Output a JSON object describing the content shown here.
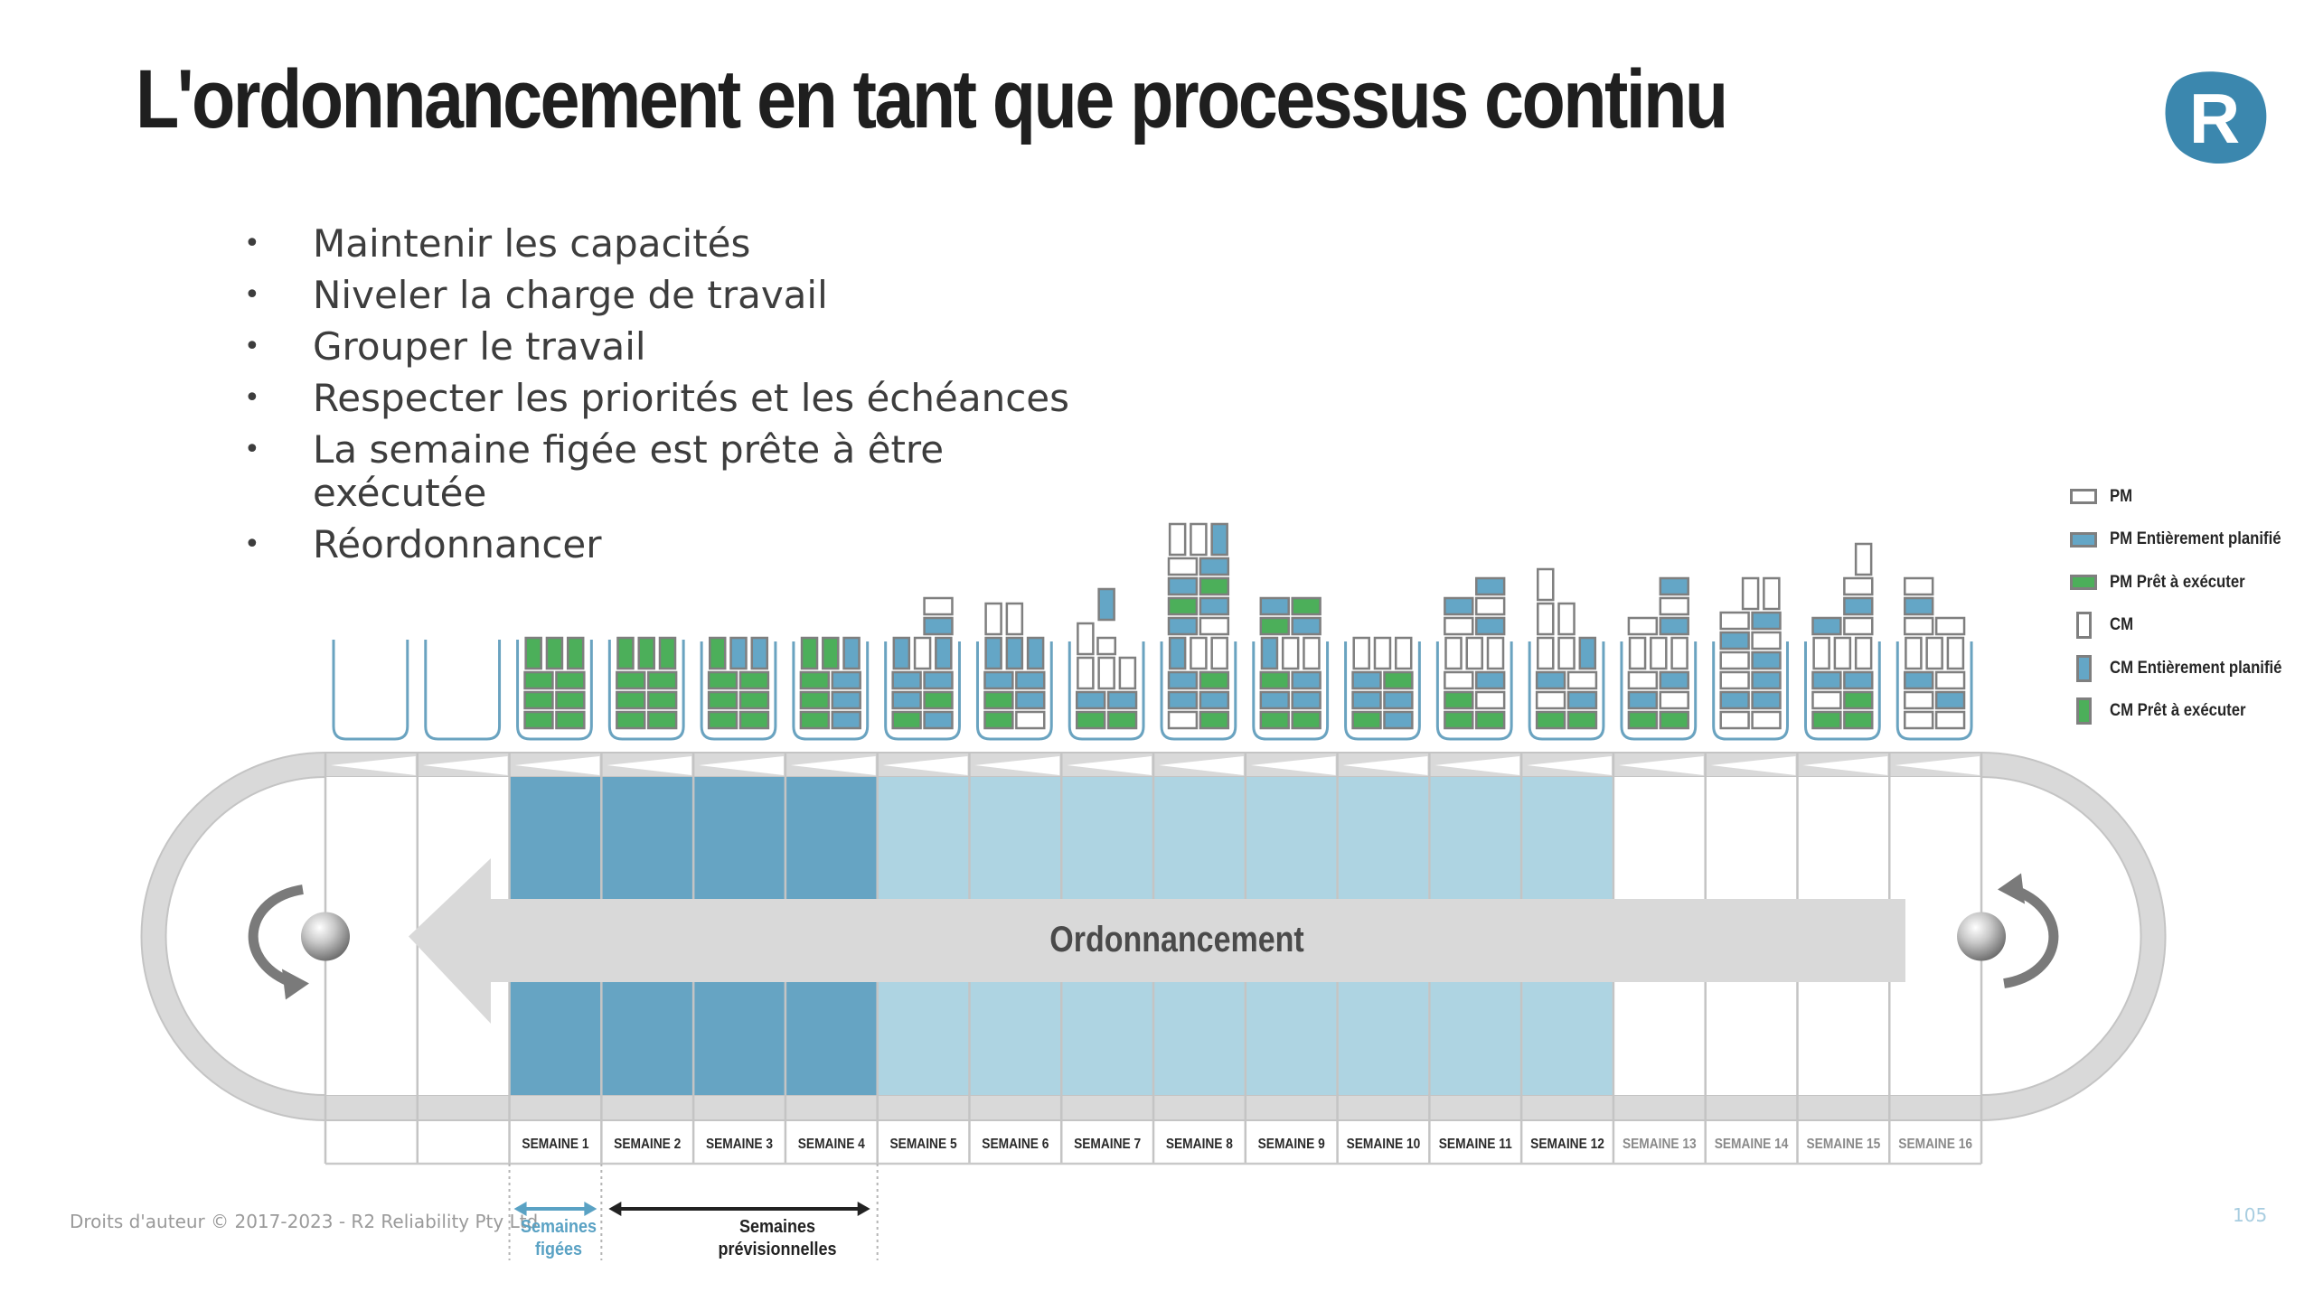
{
  "slide": {
    "title": "L'ordonnancement en tant que processus continu",
    "logo_letter": "R",
    "bullets": [
      "Maintenir les capacités",
      "Niveler la charge de travail",
      "Grouper le travail",
      "Respecter les priorités et les échéances",
      "La semaine figée est prête à être exécutée",
      "Réordonnancer"
    ],
    "bullet_glyph": "•",
    "footer": "Droits d'auteur © 2017-2023 - R2 Reliability Pty Ltd",
    "page_number": "105"
  },
  "legend": [
    {
      "label": "PM",
      "shape": "horizontal",
      "fill": "#ffffff"
    },
    {
      "label": "PM Entièrement planifié",
      "shape": "horizontal",
      "fill": "#64a6c6"
    },
    {
      "label": "PM Prêt à exécuter",
      "shape": "horizontal",
      "fill": "#4caf5a"
    },
    {
      "label": "CM",
      "shape": "vertical",
      "fill": "#ffffff"
    },
    {
      "label": "CM Entièrement planifié",
      "shape": "vertical",
      "fill": "#64a6c6"
    },
    {
      "label": "CM Prêt à exécuter",
      "shape": "vertical",
      "fill": "#4caf5a"
    }
  ],
  "colors": {
    "planned": "#64a6c6",
    "ready": "#4caf5a",
    "empty": "#ffffff",
    "block_border": "#7f7f7f",
    "bin_stroke": "#6aa3c0",
    "frozen_cell": "#66a4c3",
    "forecast_cell": "#aed4e2",
    "belt": "#d9d9d9",
    "belt_edge": "#c4c4c4",
    "logo": "#3b87ae"
  },
  "conveyor": {
    "arrow_label": "Ordonnancement",
    "weeks": [
      {
        "label": "",
        "state": "past"
      },
      {
        "label": "",
        "state": "past"
      },
      {
        "label": "SEMAINE 1",
        "state": "frozen"
      },
      {
        "label": "SEMAINE 2",
        "state": "frozen"
      },
      {
        "label": "SEMAINE 3",
        "state": "frozen"
      },
      {
        "label": "SEMAINE 4",
        "state": "frozen"
      },
      {
        "label": "SEMAINE 5",
        "state": "forecast"
      },
      {
        "label": "SEMAINE 6",
        "state": "forecast"
      },
      {
        "label": "SEMAINE 7",
        "state": "forecast"
      },
      {
        "label": "SEMAINE 8",
        "state": "forecast"
      },
      {
        "label": "SEMAINE 9",
        "state": "forecast"
      },
      {
        "label": "SEMAINE 10",
        "state": "forecast"
      },
      {
        "label": "SEMAINE 11",
        "state": "forecast"
      },
      {
        "label": "SEMAINE 12",
        "state": "forecast"
      },
      {
        "label": "SEMAINE 13",
        "state": "future"
      },
      {
        "label": "SEMAINE 14",
        "state": "future"
      },
      {
        "label": "SEMAINE 15",
        "state": "future"
      },
      {
        "label": "SEMAINE 16",
        "state": "future"
      }
    ],
    "frozen_span_label": "Semaines figées",
    "forecast_span_label": "Semaines prévisionnelles"
  },
  "bins": [
    {
      "week": "",
      "rows": []
    },
    {
      "week": "",
      "rows": []
    },
    {
      "week": "SEMAINE 1",
      "rows": [
        [
          "Pg",
          "Pg"
        ],
        [
          "Pg",
          "Pg"
        ],
        [
          "Pg",
          "Pg"
        ],
        [
          "Cg",
          "Cg",
          "Cg"
        ]
      ]
    },
    {
      "week": "SEMAINE 2",
      "rows": [
        [
          "Pg",
          "Pg"
        ],
        [
          "Pg",
          "Pg"
        ],
        [
          "Pg",
          "Pg"
        ],
        [
          "Cg",
          "Cg",
          "Cg"
        ]
      ]
    },
    {
      "week": "SEMAINE 3",
      "rows": [
        [
          "Pg",
          "Pg"
        ],
        [
          "Pg",
          "Pg"
        ],
        [
          "Pg",
          "Pg"
        ],
        [
          "Cg",
          "Cb",
          "Cb"
        ]
      ]
    },
    {
      "week": "SEMAINE 4",
      "rows": [
        [
          "Pg",
          "Pb"
        ],
        [
          "Pg",
          "Pb"
        ],
        [
          "Pg",
          "Pb"
        ],
        [
          "Cg",
          "Cg",
          "Cb"
        ]
      ]
    },
    {
      "week": "SEMAINE 5",
      "rows": [
        [
          "Pg",
          "Pb"
        ],
        [
          "Pb",
          "Pg"
        ],
        [
          "Pb",
          "Pb"
        ],
        [
          "Cb",
          "C",
          "Cb"
        ],
        [
          "_",
          "Pb"
        ],
        [
          "_",
          "P"
        ]
      ]
    },
    {
      "week": "SEMAINE 6",
      "rows": [
        [
          "Pg",
          "P"
        ],
        [
          "Pg",
          "Pb"
        ],
        [
          "Pb",
          "Pb"
        ],
        [
          "Cb",
          "Cb",
          "Cb"
        ],
        [
          "C",
          "C",
          "_"
        ]
      ]
    },
    {
      "week": "SEMAINE 7",
      "rows": [
        [
          "Pg",
          "Pg"
        ],
        [
          "Pb",
          "Pb"
        ],
        [
          "C",
          "C",
          "C"
        ],
        [
          "C",
          "P"
        ],
        [
          "_",
          "Cb",
          "_"
        ]
      ]
    },
    {
      "week": "SEMAINE 8",
      "rows": [
        [
          "P",
          "Pg"
        ],
        [
          "Pb",
          "Pb"
        ],
        [
          "Pb",
          "Pg"
        ],
        [
          "Cb",
          "C",
          "C"
        ],
        [
          "Pb",
          "P"
        ],
        [
          "Pg",
          "Pb"
        ],
        [
          "Pb",
          "Pg"
        ],
        [
          "P",
          "Pb"
        ],
        [
          "C",
          "C",
          "Cb"
        ]
      ]
    },
    {
      "week": "SEMAINE 9",
      "rows": [
        [
          "Pg",
          "Pg"
        ],
        [
          "Pb",
          "Pb"
        ],
        [
          "Pg",
          "Pb"
        ],
        [
          "Cb",
          "C",
          "C"
        ],
        [
          "Pg",
          "Pb"
        ],
        [
          "Pb",
          "Pg"
        ]
      ]
    },
    {
      "week": "SEMAINE 10",
      "rows": [
        [
          "Pg",
          "Pb"
        ],
        [
          "Pb",
          "Pb"
        ],
        [
          "Pb",
          "Pg"
        ],
        [
          "C",
          "C",
          "C"
        ]
      ]
    },
    {
      "week": "SEMAINE 11",
      "rows": [
        [
          "Pg",
          "Pg"
        ],
        [
          "Pg",
          "P"
        ],
        [
          "P",
          "Pb"
        ],
        [
          "C",
          "C",
          "C"
        ],
        [
          "P",
          "Pb"
        ],
        [
          "Pb",
          "P"
        ],
        [
          "_",
          "Pb"
        ]
      ]
    },
    {
      "week": "SEMAINE 12",
      "rows": [
        [
          "Pg",
          "Pg"
        ],
        [
          "P",
          "Pb"
        ],
        [
          "Pb",
          "P"
        ],
        [
          "C",
          "C",
          "Cb"
        ],
        [
          "C",
          "C",
          "_"
        ],
        [
          "C",
          "_",
          "_"
        ]
      ]
    },
    {
      "week": "SEMAINE 13",
      "rows": [
        [
          "Pg",
          "Pg"
        ],
        [
          "Pb",
          "P"
        ],
        [
          "P",
          "Pb"
        ],
        [
          "C",
          "C",
          "C"
        ],
        [
          "P",
          "Pb"
        ],
        [
          "_",
          "P"
        ],
        [
          "_",
          "Pb"
        ]
      ]
    },
    {
      "week": "SEMAINE 14",
      "rows": [
        [
          "P",
          "P"
        ],
        [
          "Pb",
          "Pb"
        ],
        [
          "P",
          "Pb"
        ],
        [
          "P",
          "Pb"
        ],
        [
          "Pb",
          "P"
        ],
        [
          "P",
          "Pb"
        ],
        [
          "_",
          "C",
          "C"
        ]
      ]
    },
    {
      "week": "SEMAINE 15",
      "rows": [
        [
          "Pg",
          "Pg"
        ],
        [
          "P",
          "Pg"
        ],
        [
          "Pb",
          "Pb"
        ],
        [
          "C",
          "C",
          "C"
        ],
        [
          "Pb",
          "P"
        ],
        [
          "_",
          "Pb"
        ],
        [
          "_",
          "P"
        ],
        [
          "_",
          "_",
          "C"
        ]
      ]
    },
    {
      "week": "SEMAINE 16",
      "rows": [
        [
          "P",
          "P"
        ],
        [
          "P",
          "Pb"
        ],
        [
          "Pb",
          "P"
        ],
        [
          "C",
          "C",
          "C"
        ],
        [
          "P",
          "P"
        ],
        [
          "Pb",
          "_"
        ],
        [
          "P",
          "_"
        ]
      ]
    }
  ]
}
